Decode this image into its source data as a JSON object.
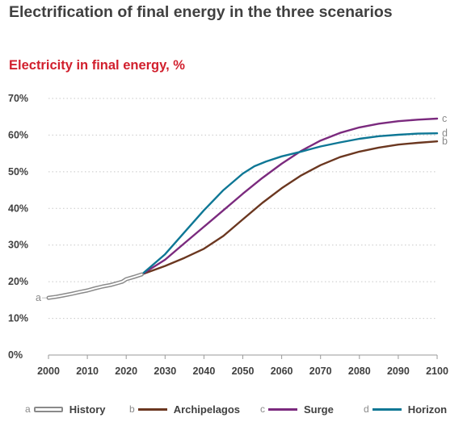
{
  "title": "Electrification of final energy in the three scenarios",
  "subtitle": "Electricity in final energy, %",
  "chart_data": {
    "type": "line",
    "ylabel": "",
    "xlabel": "",
    "xlim": [
      2000,
      2100
    ],
    "ylim": [
      0,
      70
    ],
    "x_ticks": [
      2000,
      2010,
      2020,
      2030,
      2040,
      2050,
      2060,
      2070,
      2080,
      2090,
      2100
    ],
    "x_tick_labels": [
      "2000",
      "2010",
      "2020",
      "2030",
      "2040",
      "2050",
      "2060",
      "2070",
      "2080",
      "2090",
      "2100"
    ],
    "y_ticks": [
      0,
      10,
      20,
      30,
      40,
      50,
      60,
      70
    ],
    "y_tick_labels": [
      "0%",
      "10%",
      "20%",
      "30%",
      "40%",
      "50%",
      "60%",
      "70%"
    ],
    "grid": "horizontal dotted",
    "legend_position": "bottom",
    "series": [
      {
        "name": "History",
        "letter": "a",
        "color": "#8a8a8a",
        "style": "outlined",
        "x": [
          2000,
          2002,
          2004,
          2006,
          2008,
          2010,
          2012,
          2014,
          2016,
          2018,
          2019,
          2020,
          2022,
          2024
        ],
        "y": [
          15.6,
          15.9,
          16.3,
          16.7,
          17.2,
          17.6,
          18.2,
          18.7,
          19.1,
          19.7,
          20.0,
          20.7,
          21.3,
          22.0
        ]
      },
      {
        "name": "Archipelagos",
        "letter": "b",
        "color": "#6b3720",
        "style": "solid",
        "x": [
          2024,
          2030,
          2035,
          2040,
          2045,
          2050,
          2055,
          2060,
          2065,
          2070,
          2075,
          2080,
          2085,
          2090,
          2095,
          2100
        ],
        "y": [
          22.0,
          24.3,
          26.5,
          29.0,
          32.5,
          37.0,
          41.5,
          45.5,
          49.0,
          51.8,
          54.0,
          55.5,
          56.6,
          57.4,
          57.9,
          58.3
        ]
      },
      {
        "name": "Surge",
        "letter": "c",
        "color": "#7b2a7e",
        "style": "solid",
        "x": [
          2024,
          2030,
          2035,
          2040,
          2045,
          2050,
          2055,
          2060,
          2065,
          2070,
          2075,
          2080,
          2085,
          2090,
          2095,
          2100
        ],
        "y": [
          22.0,
          26.0,
          30.5,
          35.0,
          39.5,
          44.0,
          48.3,
          52.2,
          55.7,
          58.5,
          60.6,
          62.1,
          63.1,
          63.8,
          64.2,
          64.5
        ]
      },
      {
        "name": "Horizon",
        "letter": "d",
        "color": "#0e7795",
        "style": "solid",
        "x": [
          2024,
          2030,
          2035,
          2040,
          2045,
          2050,
          2053,
          2056,
          2060,
          2065,
          2070,
          2075,
          2080,
          2085,
          2090,
          2095,
          2100
        ],
        "y": [
          22.0,
          27.5,
          33.5,
          39.5,
          45.0,
          49.5,
          51.5,
          52.8,
          54.2,
          55.5,
          56.9,
          58.0,
          59.0,
          59.7,
          60.1,
          60.4,
          60.5
        ]
      }
    ],
    "end_labels": [
      {
        "letter": "c",
        "y": 64.5
      },
      {
        "letter": "d",
        "y": 60.5
      },
      {
        "letter": "b",
        "y": 58.3
      }
    ],
    "start_label": {
      "letter": "a",
      "y": 15.6
    }
  }
}
